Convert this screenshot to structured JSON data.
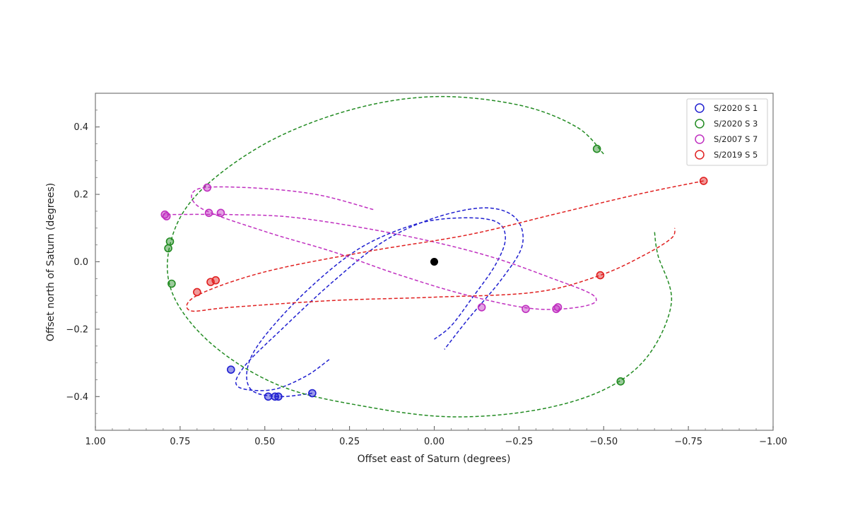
{
  "chart_data": {
    "type": "scatter",
    "xlabel": "Offset east of Saturn (degrees)",
    "ylabel": "Offset north of Saturn (degrees)",
    "xlim": [
      1.0,
      -1.0
    ],
    "ylim": [
      -0.5,
      0.5
    ],
    "x_ticks": [
      "1.00",
      "0.75",
      "0.50",
      "0.25",
      "0.00",
      "−0.25",
      "−0.50",
      "−0.75",
      "−1.00"
    ],
    "y_ticks": [
      "−0.4",
      "−0.2",
      "0.0",
      "0.2",
      "0.4"
    ],
    "legend_position": "top-right",
    "center": {
      "x": 0.0,
      "y": 0.0,
      "color": "#000000"
    },
    "series": [
      {
        "name": "S/2020 S 1",
        "color": "#2020d0",
        "marker": "open-circle",
        "points": [
          [
            0.6,
            -0.32
          ],
          [
            0.49,
            -0.4
          ],
          [
            0.47,
            -0.4
          ],
          [
            0.46,
            -0.4
          ],
          [
            0.36,
            -0.39
          ]
        ],
        "orbit_path": [
          [
            0.31,
            -0.29
          ],
          [
            0.38,
            -0.34
          ],
          [
            0.48,
            -0.38
          ],
          [
            0.58,
            -0.37
          ],
          [
            0.56,
            -0.31
          ],
          [
            0.45,
            -0.2
          ],
          [
            0.3,
            -0.06
          ],
          [
            0.15,
            0.06
          ],
          [
            0.0,
            0.13
          ],
          [
            -0.15,
            0.16
          ],
          [
            -0.24,
            0.13
          ],
          [
            -0.26,
            0.05
          ],
          [
            -0.2,
            -0.05
          ],
          [
            -0.1,
            -0.17
          ],
          [
            -0.03,
            -0.26
          ]
        ],
        "orbit_path_2": [
          [
            0.36,
            -0.39
          ],
          [
            0.46,
            -0.4
          ],
          [
            0.54,
            -0.38
          ],
          [
            0.55,
            -0.31
          ],
          [
            0.5,
            -0.22
          ],
          [
            0.37,
            -0.08
          ],
          [
            0.22,
            0.04
          ],
          [
            0.06,
            0.11
          ],
          [
            -0.07,
            0.13
          ],
          [
            -0.18,
            0.12
          ],
          [
            -0.21,
            0.07
          ],
          [
            -0.18,
            -0.01
          ],
          [
            -0.11,
            -0.11
          ],
          [
            -0.05,
            -0.19
          ],
          [
            0.0,
            -0.23
          ]
        ]
      },
      {
        "name": "S/2020 S 3",
        "color": "#228b22",
        "marker": "open-circle",
        "points": [
          [
            0.78,
            0.06
          ],
          [
            0.785,
            0.04
          ],
          [
            0.775,
            -0.065
          ],
          [
            -0.48,
            0.335
          ],
          [
            -0.55,
            -0.355
          ]
        ],
        "orbit_path": [
          [
            -0.5,
            0.32
          ],
          [
            -0.42,
            0.4
          ],
          [
            -0.25,
            0.465
          ],
          [
            0.0,
            0.49
          ],
          [
            0.25,
            0.45
          ],
          [
            0.5,
            0.35
          ],
          [
            0.7,
            0.2
          ],
          [
            0.78,
            0.05
          ],
          [
            0.77,
            -0.1
          ],
          [
            0.65,
            -0.25
          ],
          [
            0.45,
            -0.37
          ],
          [
            0.2,
            -0.43
          ],
          [
            -0.05,
            -0.46
          ],
          [
            -0.3,
            -0.44
          ],
          [
            -0.5,
            -0.38
          ],
          [
            -0.63,
            -0.28
          ],
          [
            -0.7,
            -0.12
          ],
          [
            -0.66,
            0.02
          ],
          [
            -0.65,
            0.09
          ]
        ]
      },
      {
        "name": "S/2007 S 7",
        "color": "#c030c0",
        "marker": "open-circle",
        "points": [
          [
            0.795,
            0.14
          ],
          [
            0.79,
            0.135
          ],
          [
            0.67,
            0.22
          ],
          [
            0.665,
            0.145
          ],
          [
            0.63,
            0.145
          ],
          [
            -0.14,
            -0.135
          ],
          [
            -0.27,
            -0.14
          ],
          [
            -0.36,
            -0.14
          ],
          [
            -0.365,
            -0.135
          ]
        ],
        "orbit_path": [
          [
            0.18,
            0.155
          ],
          [
            0.35,
            0.2
          ],
          [
            0.55,
            0.22
          ],
          [
            0.7,
            0.215
          ],
          [
            0.69,
            0.16
          ],
          [
            0.5,
            0.09
          ],
          [
            0.3,
            0.03
          ],
          [
            0.1,
            -0.04
          ],
          [
            -0.1,
            -0.1
          ],
          [
            -0.3,
            -0.14
          ],
          [
            -0.45,
            -0.13
          ],
          [
            -0.47,
            -0.1
          ],
          [
            -0.35,
            -0.05
          ],
          [
            -0.15,
            0.02
          ],
          [
            0.1,
            0.08
          ],
          [
            0.4,
            0.13
          ],
          [
            0.6,
            0.14
          ],
          [
            0.8,
            0.14
          ]
        ]
      },
      {
        "name": "S/2019 S 5",
        "color": "#e02020",
        "marker": "open-circle",
        "points": [
          [
            0.7,
            -0.09
          ],
          [
            0.66,
            -0.06
          ],
          [
            0.645,
            -0.055
          ],
          [
            -0.49,
            -0.04
          ],
          [
            -0.795,
            0.24
          ]
        ],
        "orbit_path": [
          [
            -0.795,
            0.24
          ],
          [
            -0.6,
            0.2
          ],
          [
            -0.35,
            0.14
          ],
          [
            -0.1,
            0.08
          ],
          [
            0.2,
            0.03
          ],
          [
            0.5,
            -0.03
          ],
          [
            0.7,
            -0.1
          ],
          [
            0.72,
            -0.145
          ],
          [
            0.6,
            -0.135
          ],
          [
            0.3,
            -0.115
          ],
          [
            0.0,
            -0.105
          ],
          [
            -0.3,
            -0.09
          ],
          [
            -0.49,
            -0.04
          ],
          [
            -0.62,
            0.02
          ],
          [
            -0.7,
            0.07
          ],
          [
            -0.71,
            0.1
          ]
        ]
      }
    ]
  }
}
